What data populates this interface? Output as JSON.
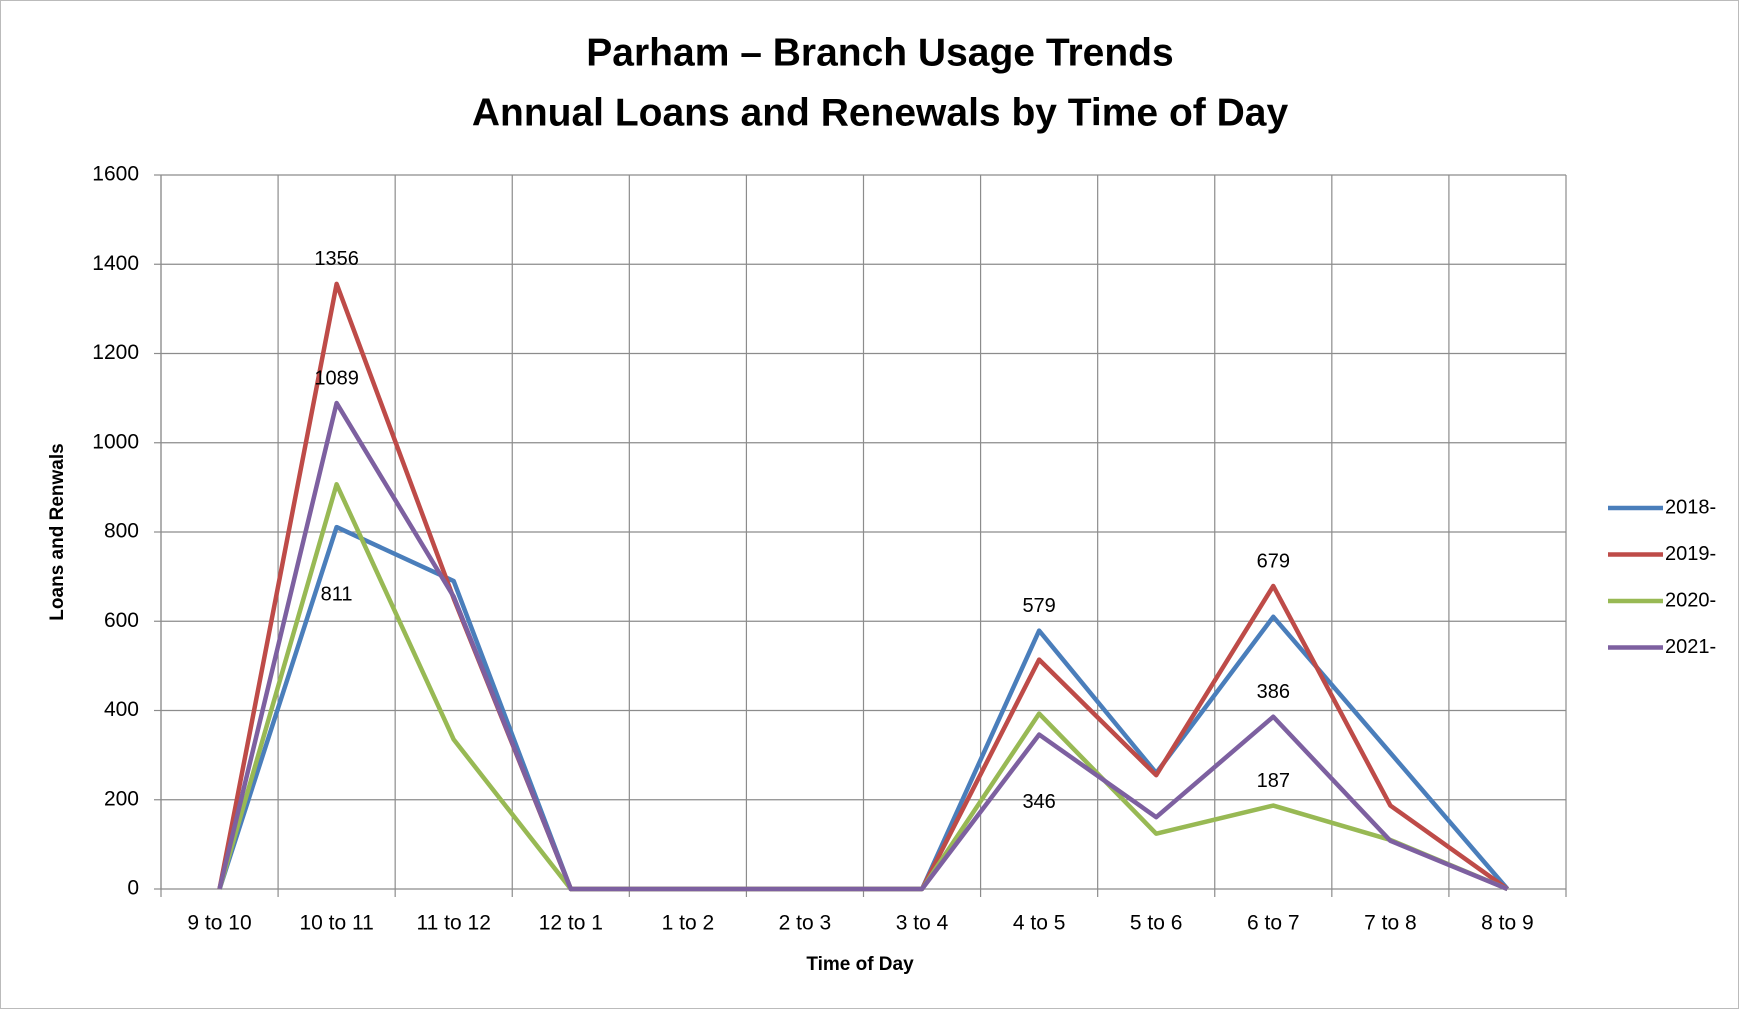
{
  "chart_data": {
    "type": "line",
    "title": [
      "Parham – Branch Usage Trends",
      "Annual Loans and Renewals by Time of Day"
    ],
    "x_label": "Time of Day",
    "y_label": "Loans and Renwals",
    "categories": [
      "9 to 10",
      "10 to 11",
      "11 to 12",
      "12 to 1",
      "1 to 2",
      "2 to 3",
      "3 to 4",
      "4 to 5",
      "5 to 6",
      "6 to 7",
      "7 to 8",
      "8 to 9"
    ],
    "series": [
      {
        "name": "2018-",
        "color": "#4a7ebb",
        "values": [
          0,
          811,
          690,
          0,
          0,
          0,
          0,
          579,
          260,
          610,
          305,
          0
        ],
        "labels_at": [
          {
            "index": 1,
            "position": "below"
          },
          {
            "index": 7,
            "position": "above"
          }
        ]
      },
      {
        "name": "2019-",
        "color": "#be4b48",
        "values": [
          0,
          1356,
          651,
          0,
          0,
          0,
          0,
          514,
          255,
          679,
          187,
          0
        ],
        "labels_at": [
          {
            "index": 1,
            "position": "above"
          },
          {
            "index": 9,
            "position": "above"
          }
        ]
      },
      {
        "name": "2020-",
        "color": "#98b954",
        "values": [
          0,
          907,
          335,
          0,
          0,
          0,
          0,
          393,
          124,
          187,
          110,
          0
        ],
        "labels_at": [
          {
            "index": 9,
            "position": "above"
          }
        ]
      },
      {
        "name": "2021-",
        "color": "#7d60a0",
        "values": [
          0,
          1089,
          655,
          0,
          0,
          0,
          0,
          346,
          161,
          386,
          108,
          0
        ],
        "labels_at": [
          {
            "index": 1,
            "position": "above"
          },
          {
            "index": 7,
            "position": "below"
          },
          {
            "index": 9,
            "position": "above"
          }
        ]
      }
    ],
    "ylim": [
      0,
      1600
    ],
    "yticks": [
      0,
      200,
      400,
      600,
      800,
      1000,
      1200,
      1400,
      1600
    ],
    "grid": true,
    "legend": "right"
  }
}
